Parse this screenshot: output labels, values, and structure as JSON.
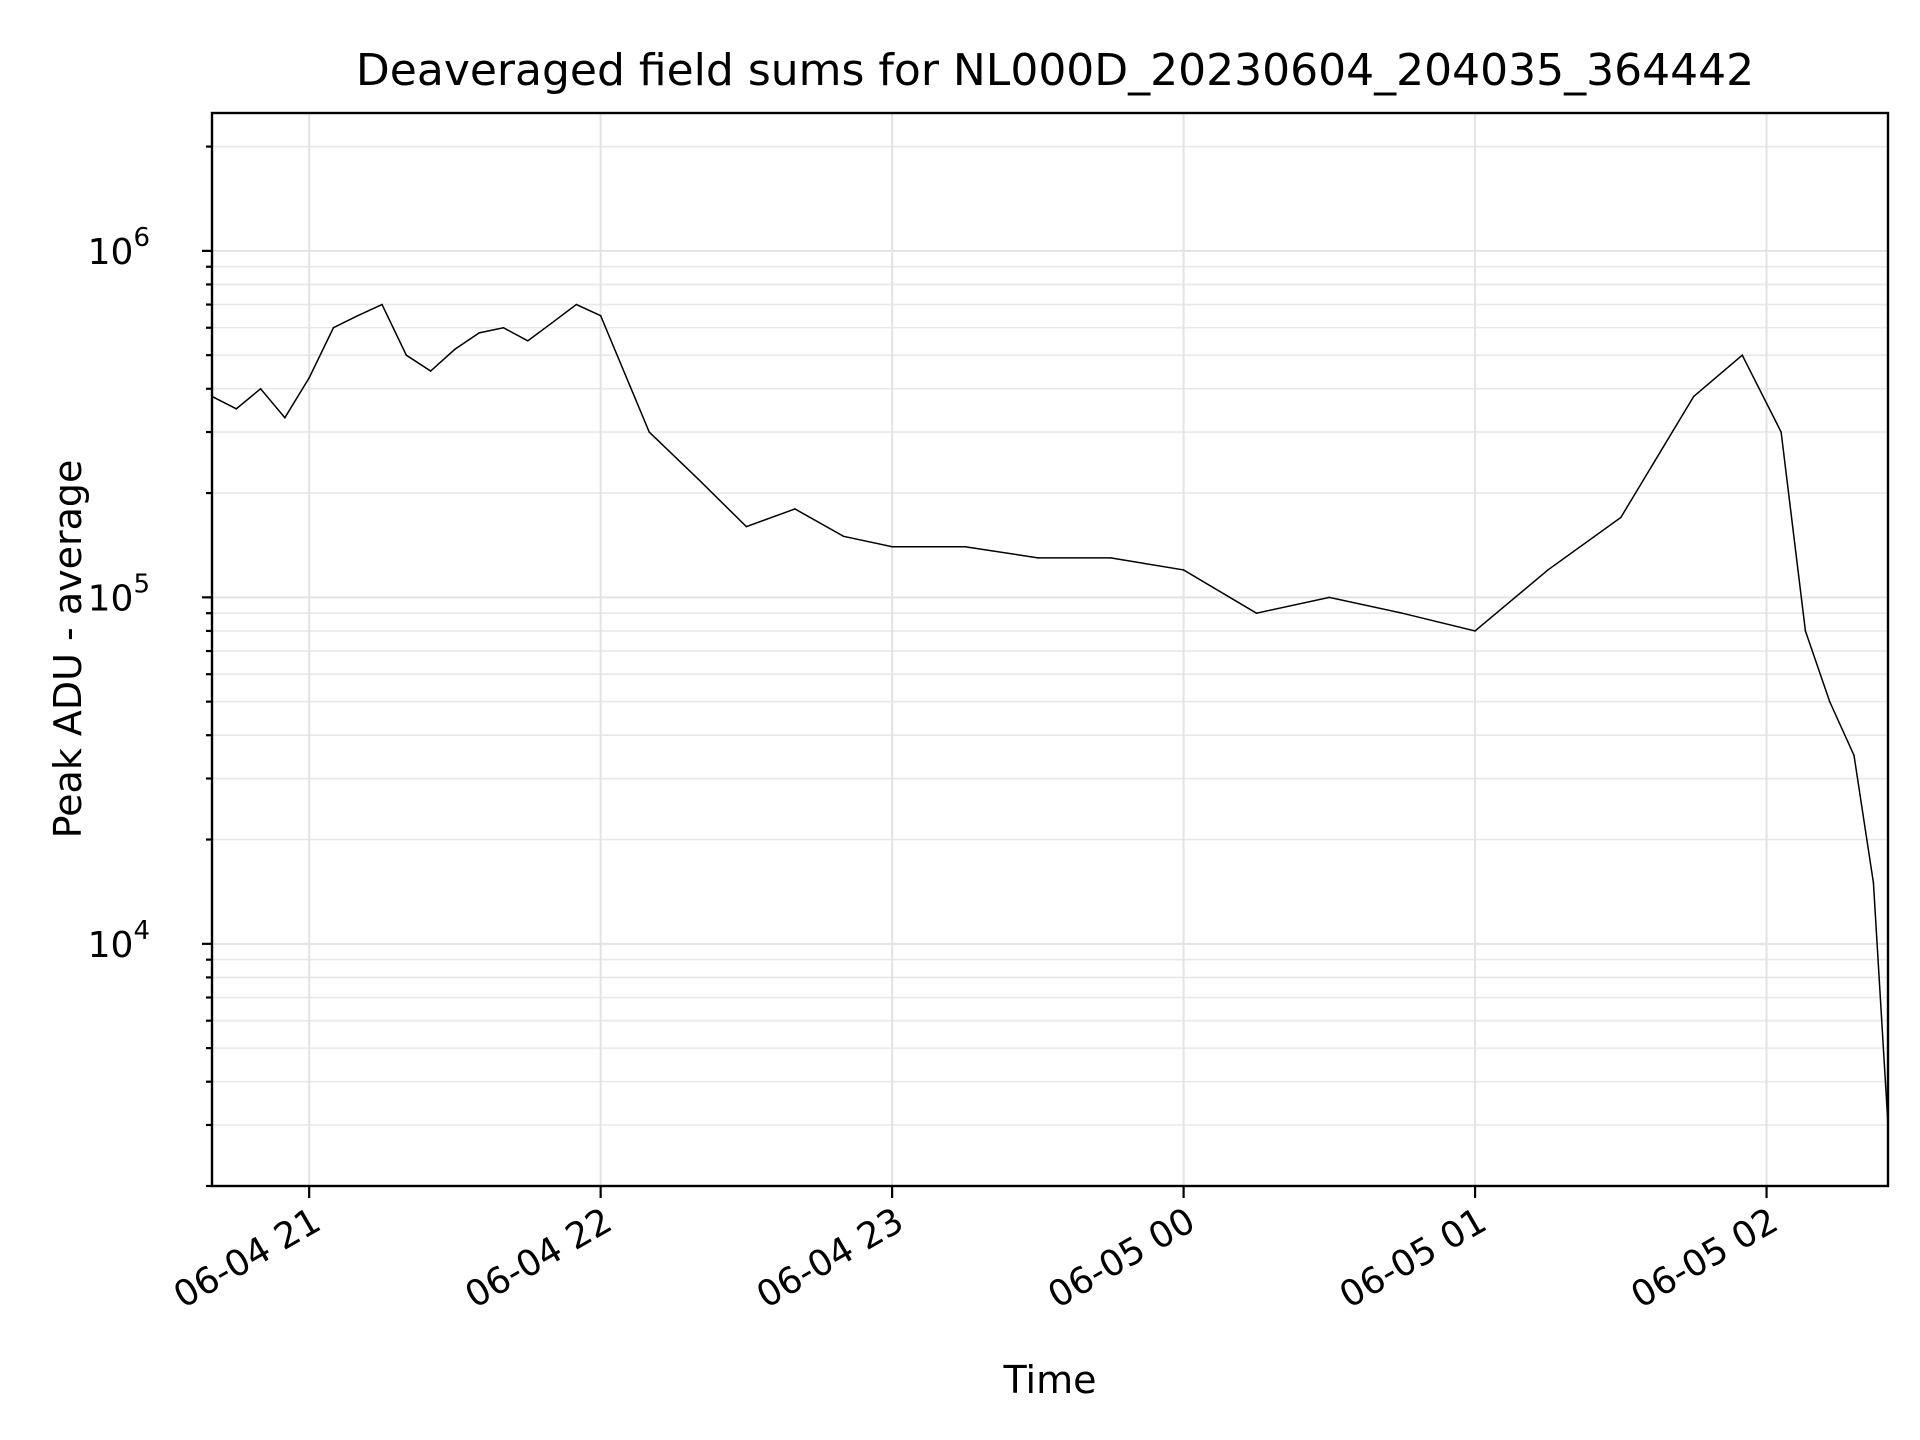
{
  "chart_data": {
    "type": "line",
    "title": "Deaveraged field sums for NL000D_20230604_204035_364442",
    "xlabel": "Time",
    "ylabel": "Peak ADU - average",
    "yscale": "log",
    "xlim": [
      "2023-06-04 20:40",
      "2023-06-05 02:25"
    ],
    "ylim": [
      2000,
      2500000
    ],
    "grid": true,
    "x_ticks": [
      {
        "value": "2023-06-04 21:00",
        "label": "06-04 21"
      },
      {
        "value": "2023-06-04 22:00",
        "label": "06-04 22"
      },
      {
        "value": "2023-06-04 23:00",
        "label": "06-04 23"
      },
      {
        "value": "2023-06-05 00:00",
        "label": "06-05 00"
      },
      {
        "value": "2023-06-05 01:00",
        "label": "06-05 01"
      },
      {
        "value": "2023-06-05 02:00",
        "label": "06-05 02"
      }
    ],
    "y_ticks": [
      {
        "value": 10000,
        "base": "10",
        "exp": "4"
      },
      {
        "value": 100000,
        "base": "10",
        "exp": "5"
      },
      {
        "value": 1000000,
        "base": "10",
        "exp": "6"
      }
    ],
    "series": [
      {
        "color": "#000000",
        "points": [
          [
            "2023-06-04 20:40",
            380000
          ],
          [
            "2023-06-04 20:45",
            350000
          ],
          [
            "2023-06-04 20:50",
            400000
          ],
          [
            "2023-06-04 20:55",
            330000
          ],
          [
            "2023-06-04 21:00",
            430000
          ],
          [
            "2023-06-04 21:05",
            600000
          ],
          [
            "2023-06-04 21:10",
            650000
          ],
          [
            "2023-06-04 21:15",
            700000
          ],
          [
            "2023-06-04 21:20",
            500000
          ],
          [
            "2023-06-04 21:25",
            450000
          ],
          [
            "2023-06-04 21:30",
            520000
          ],
          [
            "2023-06-04 21:35",
            580000
          ],
          [
            "2023-06-04 21:40",
            600000
          ],
          [
            "2023-06-04 21:45",
            550000
          ],
          [
            "2023-06-04 21:50",
            620000
          ],
          [
            "2023-06-04 21:55",
            700000
          ],
          [
            "2023-06-04 22:00",
            650000
          ],
          [
            "2023-06-04 22:10",
            300000
          ],
          [
            "2023-06-04 22:20",
            220000
          ],
          [
            "2023-06-04 22:30",
            160000
          ],
          [
            "2023-06-04 22:40",
            180000
          ],
          [
            "2023-06-04 22:50",
            150000
          ],
          [
            "2023-06-04 23:00",
            140000
          ],
          [
            "2023-06-04 23:15",
            140000
          ],
          [
            "2023-06-04 23:30",
            130000
          ],
          [
            "2023-06-04 23:45",
            130000
          ],
          [
            "2023-06-05 00:00",
            120000
          ],
          [
            "2023-06-05 00:15",
            90000
          ],
          [
            "2023-06-05 00:30",
            100000
          ],
          [
            "2023-06-05 00:45",
            90000
          ],
          [
            "2023-06-05 01:00",
            80000
          ],
          [
            "2023-06-05 01:15",
            120000
          ],
          [
            "2023-06-05 01:30",
            170000
          ],
          [
            "2023-06-05 01:45",
            380000
          ],
          [
            "2023-06-05 01:55",
            500000
          ],
          [
            "2023-06-05 02:03",
            300000
          ],
          [
            "2023-06-05 02:08",
            80000
          ],
          [
            "2023-06-05 02:13",
            50000
          ],
          [
            "2023-06-05 02:18",
            35000
          ],
          [
            "2023-06-05 02:22",
            15000
          ],
          [
            "2023-06-05 02:25",
            3000
          ]
        ]
      }
    ]
  }
}
